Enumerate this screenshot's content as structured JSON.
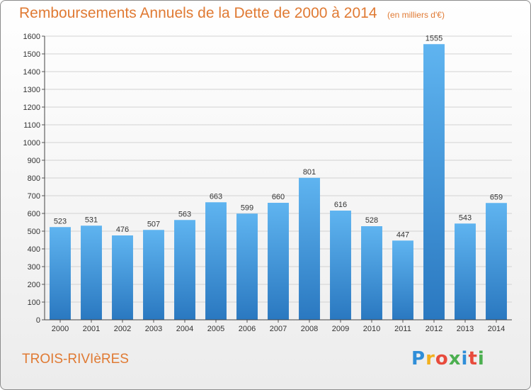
{
  "title": "Remboursements Annuels de la Dette de 2000 à 2014",
  "unit": "(en milliers d'€)",
  "city": "TROIS-RIVIèRES",
  "logo": {
    "letters": [
      "P",
      "r",
      "o",
      "x",
      "i",
      "t",
      "i"
    ],
    "colors": [
      "#2f8ed8",
      "#f2b01e",
      "#e84b3c",
      "#4caf50",
      "#2f8ed8",
      "#e84b3c",
      "#4caf50"
    ]
  },
  "colors": {
    "title": "#e07a33",
    "bar_light": "#5fb4f0",
    "bar_dark": "#2a78c0"
  },
  "chart_data": {
    "type": "bar",
    "categories": [
      "2000",
      "2001",
      "2002",
      "2003",
      "2004",
      "2005",
      "2006",
      "2007",
      "2008",
      "2009",
      "2010",
      "2011",
      "2012",
      "2013",
      "2014"
    ],
    "values": [
      523,
      531,
      476,
      507,
      563,
      663,
      599,
      660,
      801,
      616,
      528,
      447,
      1555,
      543,
      659
    ],
    "ylim": [
      0,
      1600
    ],
    "yticks": [
      0,
      100,
      200,
      300,
      400,
      500,
      600,
      700,
      800,
      900,
      1000,
      1100,
      1200,
      1300,
      1400,
      1500,
      1600
    ],
    "grid": true,
    "xlabel": "",
    "ylabel": ""
  }
}
